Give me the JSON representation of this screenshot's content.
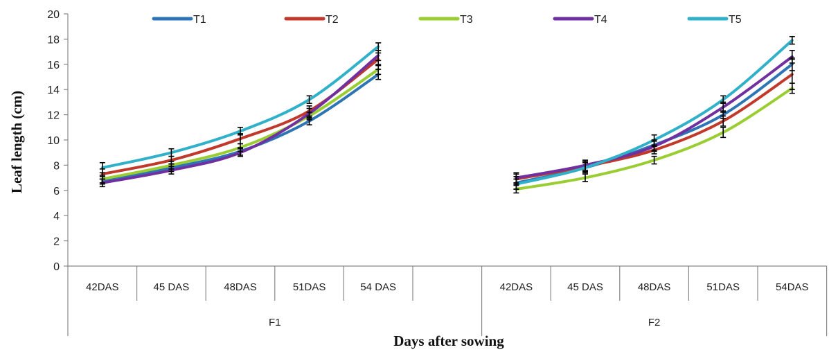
{
  "chart_data": {
    "type": "line",
    "ylabel": "Leaf length (cm)",
    "xlabel": "Days after sowing",
    "ylim": [
      0,
      20
    ],
    "yticks": [
      "0",
      "2",
      "4",
      "6",
      "8",
      "10",
      "12",
      "14",
      "16",
      "18",
      "20"
    ],
    "grid": false,
    "legend_position": "top",
    "groups": [
      {
        "label": "F1",
        "categories": [
          "42DAS",
          "45 DAS",
          "48DAS",
          "51DAS",
          "54 DAS",
          ""
        ]
      },
      {
        "label": "F2",
        "categories": [
          "42DAS",
          "45 DAS",
          "48DAS",
          "51DAS",
          "54DAS"
        ]
      }
    ],
    "series": [
      {
        "name": "T1",
        "color": "#2e75b6",
        "F1": [
          6.8,
          7.8,
          9.1,
          11.5,
          15.2
        ],
        "F1_err": [
          0.3,
          0.3,
          0.3,
          0.3,
          0.4
        ],
        "F2": [
          6.6,
          7.8,
          9.6,
          12.0,
          16.0
        ],
        "F2_err": [
          0.5,
          0.4,
          0.4,
          0.3,
          0.5
        ]
      },
      {
        "name": "T2",
        "color": "#c0392b",
        "F1": [
          7.3,
          8.4,
          10.1,
          12.3,
          16.4
        ],
        "F1_err": [
          0.4,
          0.3,
          0.4,
          0.4,
          0.5
        ],
        "F2": [
          6.9,
          7.9,
          9.2,
          11.5,
          15.2
        ],
        "F2_err": [
          0.4,
          0.4,
          0.3,
          0.4,
          1.2
        ]
      },
      {
        "name": "T3",
        "color": "#9acd32",
        "F1": [
          6.9,
          8.0,
          9.4,
          11.9,
          15.6
        ],
        "F1_err": [
          0.3,
          0.3,
          0.3,
          0.3,
          0.4
        ],
        "F2": [
          6.1,
          7.0,
          8.4,
          10.6,
          14.1
        ],
        "F2_err": [
          0.3,
          0.3,
          0.3,
          0.4,
          0.4
        ]
      },
      {
        "name": "T4",
        "color": "#7030a0",
        "F1": [
          6.6,
          7.6,
          9.0,
          12.1,
          16.7
        ],
        "F1_err": [
          0.3,
          0.3,
          0.3,
          0.4,
          0.4
        ],
        "F2": [
          7.0,
          8.0,
          9.5,
          12.6,
          16.6
        ],
        "F2_err": [
          0.4,
          0.4,
          0.4,
          0.4,
          0.5
        ]
      },
      {
        "name": "T5",
        "color": "#31b0c9",
        "F1": [
          7.8,
          9.0,
          10.7,
          13.2,
          17.4
        ],
        "F1_err": [
          0.4,
          0.3,
          0.3,
          0.3,
          0.3
        ],
        "F2": [
          6.5,
          7.8,
          10.0,
          13.2,
          17.9
        ],
        "F2_err": [
          0.4,
          0.4,
          0.4,
          0.3,
          0.3
        ]
      }
    ]
  }
}
